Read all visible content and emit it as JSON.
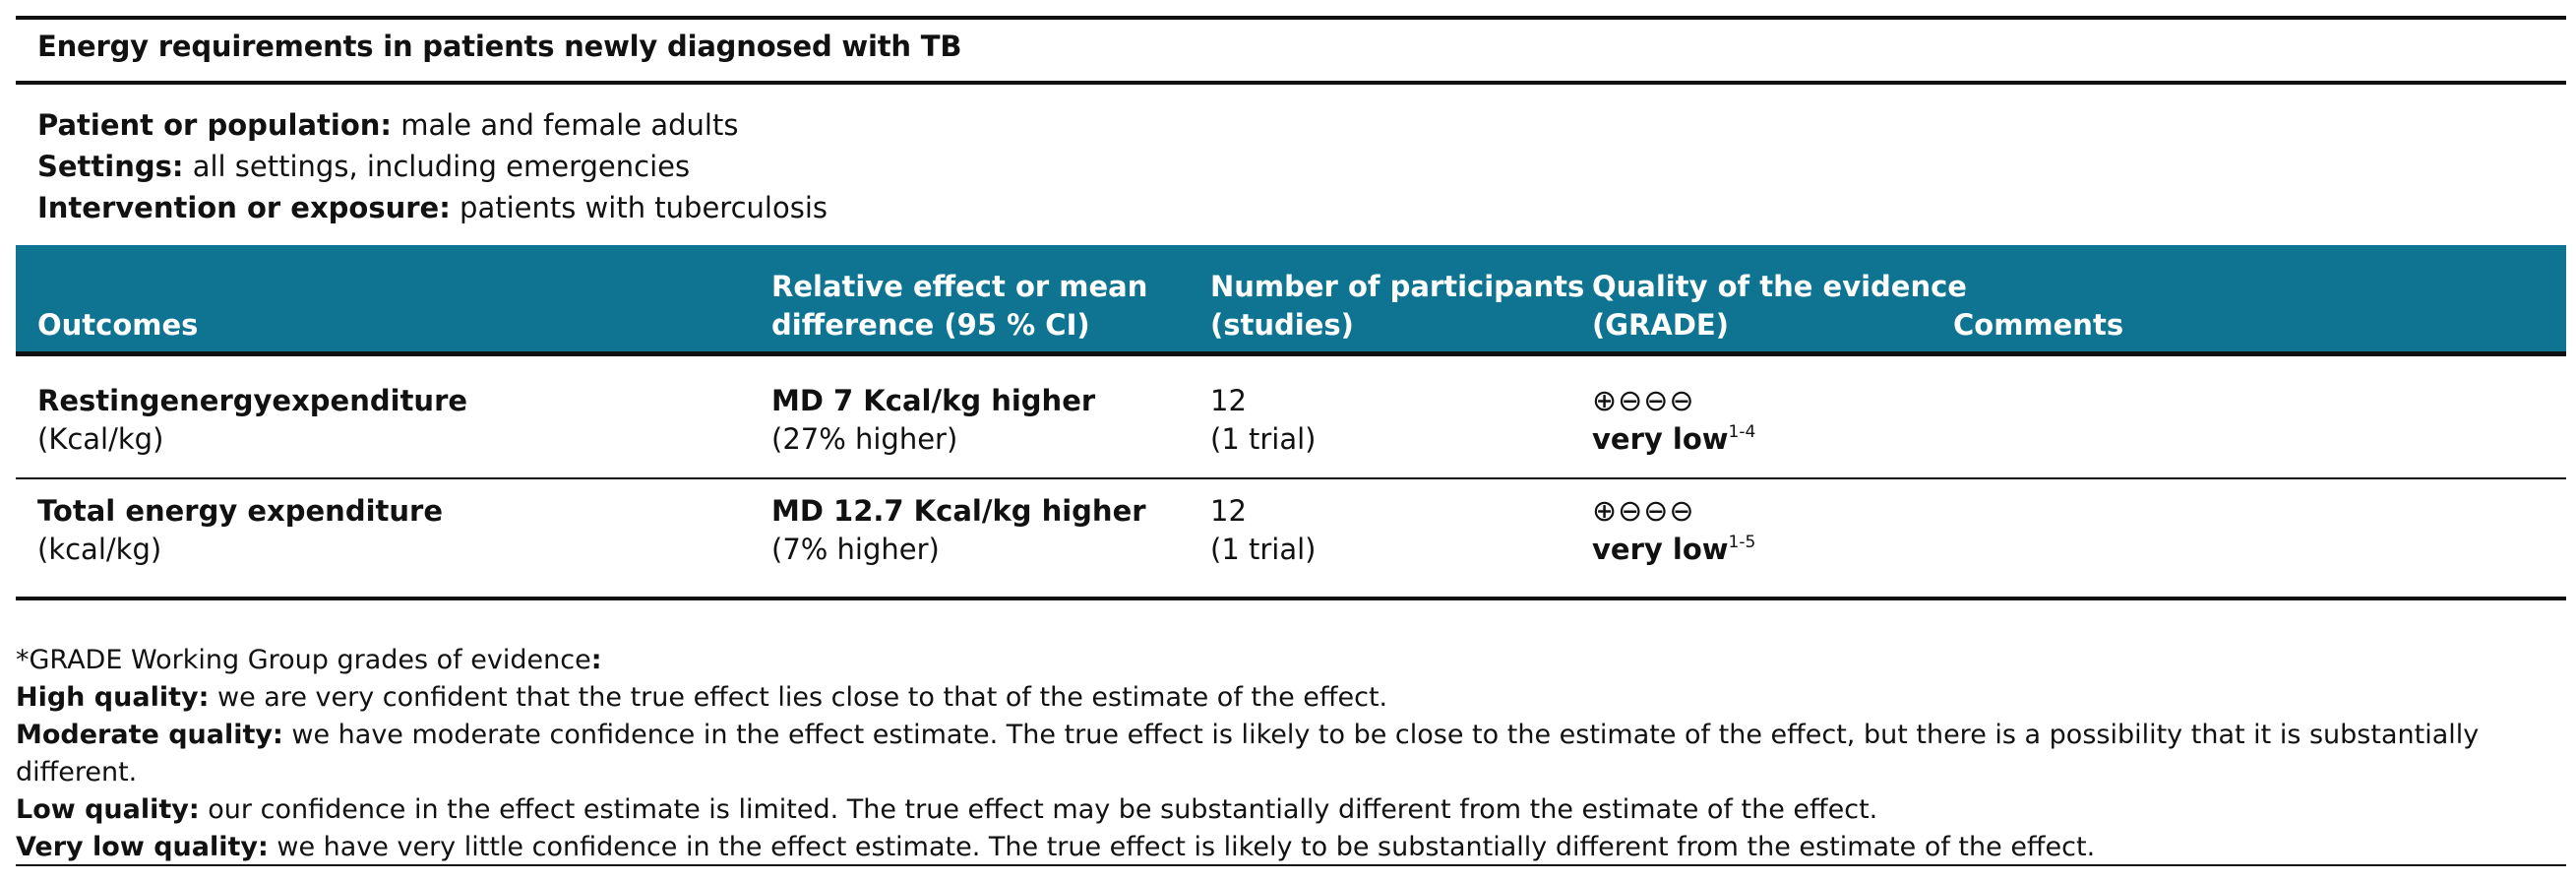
{
  "title": "Energy requirements in patients newly diagnosed with TB",
  "pico": [
    {
      "label": "Patient or population:",
      "value": "male and female adults"
    },
    {
      "label": "Settings:",
      "value": "all settings, including emergencies"
    },
    {
      "label": "Intervention or exposure:",
      "value": "patients with tuberculosis"
    }
  ],
  "columns": {
    "outcomes": "Outcomes",
    "effect_line1": "Relative effect or mean",
    "effect_line2": "difference (95 % CI)",
    "participants_line1": "Number of participants",
    "participants_line2": "(studies)",
    "quality_line1": "Quality of the evidence",
    "quality_line2": "(GRADE)",
    "comments": "Comments"
  },
  "rows": [
    {
      "outcome_words": [
        "Resting",
        "energy",
        "expenditure"
      ],
      "outcome_unit": "(Kcal/kg)",
      "effect": "MD 7 Kcal/kg higher",
      "effect_note": "(27% higher)",
      "participants": "12",
      "studies": "(1 trial)",
      "grade_symbols": "⊕⊖⊖⊖",
      "grade_label": "very low",
      "grade_footnote": "1-4",
      "comments": ""
    },
    {
      "outcome_words": [
        "Total",
        "energy",
        "expenditure"
      ],
      "outcome_unit": "(kcal/kg)",
      "effect": "MD 12.7 Kcal/kg higher",
      "effect_note": "(7% higher)",
      "participants": "12",
      "studies": "(1 trial)",
      "grade_symbols": "⊕⊖⊖⊖",
      "grade_label": "very low",
      "grade_footnote": "1-5",
      "comments": ""
    }
  ],
  "footnotes": {
    "intro": "*GRADE Working Group grades of evidence",
    "intro_colon": ":",
    "items": [
      {
        "label": "High quality:",
        "text": "we are very confident that the true effect lies close to that of the estimate of the effect."
      },
      {
        "label": "Moderate quality:",
        "text": "we have moderate confidence in the effect estimate. The true effect is likely to be close to the estimate of the effect, but there is a possibility that it is substantially different."
      },
      {
        "label": "Low quality:",
        "text": "our confidence in the effect estimate is limited. The true effect may be substantially different from the estimate of the effect."
      },
      {
        "label": "Very low quality:",
        "text": "we have very little confidence in the effect estimate. The true effect is likely to be substantially different from the estimate of the effect."
      }
    ]
  }
}
